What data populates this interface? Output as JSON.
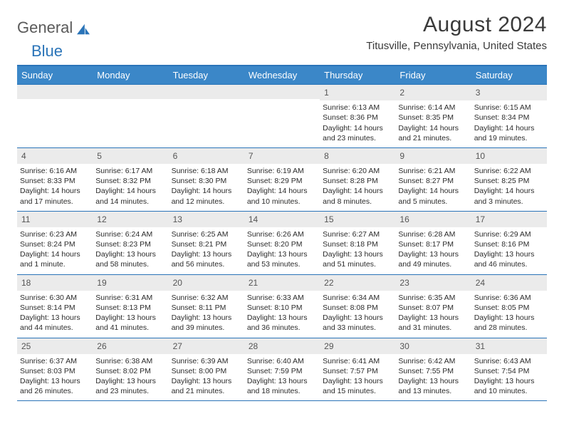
{
  "brand": {
    "part1": "General",
    "part2": "Blue"
  },
  "title": "August 2024",
  "location": "Titusville, Pennsylvania, United States",
  "colors": {
    "header_bg": "#3b87c8",
    "header_border": "#2a74b8",
    "daynum_bg": "#ebebeb",
    "text": "#2b2b2b"
  },
  "weekdays": [
    "Sunday",
    "Monday",
    "Tuesday",
    "Wednesday",
    "Thursday",
    "Friday",
    "Saturday"
  ],
  "weeks": [
    [
      {
        "n": "",
        "lines": []
      },
      {
        "n": "",
        "lines": []
      },
      {
        "n": "",
        "lines": []
      },
      {
        "n": "",
        "lines": []
      },
      {
        "n": "1",
        "lines": [
          "Sunrise: 6:13 AM",
          "Sunset: 8:36 PM",
          "Daylight: 14 hours",
          "and 23 minutes."
        ]
      },
      {
        "n": "2",
        "lines": [
          "Sunrise: 6:14 AM",
          "Sunset: 8:35 PM",
          "Daylight: 14 hours",
          "and 21 minutes."
        ]
      },
      {
        "n": "3",
        "lines": [
          "Sunrise: 6:15 AM",
          "Sunset: 8:34 PM",
          "Daylight: 14 hours",
          "and 19 minutes."
        ]
      }
    ],
    [
      {
        "n": "4",
        "lines": [
          "Sunrise: 6:16 AM",
          "Sunset: 8:33 PM",
          "Daylight: 14 hours",
          "and 17 minutes."
        ]
      },
      {
        "n": "5",
        "lines": [
          "Sunrise: 6:17 AM",
          "Sunset: 8:32 PM",
          "Daylight: 14 hours",
          "and 14 minutes."
        ]
      },
      {
        "n": "6",
        "lines": [
          "Sunrise: 6:18 AM",
          "Sunset: 8:30 PM",
          "Daylight: 14 hours",
          "and 12 minutes."
        ]
      },
      {
        "n": "7",
        "lines": [
          "Sunrise: 6:19 AM",
          "Sunset: 8:29 PM",
          "Daylight: 14 hours",
          "and 10 minutes."
        ]
      },
      {
        "n": "8",
        "lines": [
          "Sunrise: 6:20 AM",
          "Sunset: 8:28 PM",
          "Daylight: 14 hours",
          "and 8 minutes."
        ]
      },
      {
        "n": "9",
        "lines": [
          "Sunrise: 6:21 AM",
          "Sunset: 8:27 PM",
          "Daylight: 14 hours",
          "and 5 minutes."
        ]
      },
      {
        "n": "10",
        "lines": [
          "Sunrise: 6:22 AM",
          "Sunset: 8:25 PM",
          "Daylight: 14 hours",
          "and 3 minutes."
        ]
      }
    ],
    [
      {
        "n": "11",
        "lines": [
          "Sunrise: 6:23 AM",
          "Sunset: 8:24 PM",
          "Daylight: 14 hours",
          "and 1 minute."
        ]
      },
      {
        "n": "12",
        "lines": [
          "Sunrise: 6:24 AM",
          "Sunset: 8:23 PM",
          "Daylight: 13 hours",
          "and 58 minutes."
        ]
      },
      {
        "n": "13",
        "lines": [
          "Sunrise: 6:25 AM",
          "Sunset: 8:21 PM",
          "Daylight: 13 hours",
          "and 56 minutes."
        ]
      },
      {
        "n": "14",
        "lines": [
          "Sunrise: 6:26 AM",
          "Sunset: 8:20 PM",
          "Daylight: 13 hours",
          "and 53 minutes."
        ]
      },
      {
        "n": "15",
        "lines": [
          "Sunrise: 6:27 AM",
          "Sunset: 8:18 PM",
          "Daylight: 13 hours",
          "and 51 minutes."
        ]
      },
      {
        "n": "16",
        "lines": [
          "Sunrise: 6:28 AM",
          "Sunset: 8:17 PM",
          "Daylight: 13 hours",
          "and 49 minutes."
        ]
      },
      {
        "n": "17",
        "lines": [
          "Sunrise: 6:29 AM",
          "Sunset: 8:16 PM",
          "Daylight: 13 hours",
          "and 46 minutes."
        ]
      }
    ],
    [
      {
        "n": "18",
        "lines": [
          "Sunrise: 6:30 AM",
          "Sunset: 8:14 PM",
          "Daylight: 13 hours",
          "and 44 minutes."
        ]
      },
      {
        "n": "19",
        "lines": [
          "Sunrise: 6:31 AM",
          "Sunset: 8:13 PM",
          "Daylight: 13 hours",
          "and 41 minutes."
        ]
      },
      {
        "n": "20",
        "lines": [
          "Sunrise: 6:32 AM",
          "Sunset: 8:11 PM",
          "Daylight: 13 hours",
          "and 39 minutes."
        ]
      },
      {
        "n": "21",
        "lines": [
          "Sunrise: 6:33 AM",
          "Sunset: 8:10 PM",
          "Daylight: 13 hours",
          "and 36 minutes."
        ]
      },
      {
        "n": "22",
        "lines": [
          "Sunrise: 6:34 AM",
          "Sunset: 8:08 PM",
          "Daylight: 13 hours",
          "and 33 minutes."
        ]
      },
      {
        "n": "23",
        "lines": [
          "Sunrise: 6:35 AM",
          "Sunset: 8:07 PM",
          "Daylight: 13 hours",
          "and 31 minutes."
        ]
      },
      {
        "n": "24",
        "lines": [
          "Sunrise: 6:36 AM",
          "Sunset: 8:05 PM",
          "Daylight: 13 hours",
          "and 28 minutes."
        ]
      }
    ],
    [
      {
        "n": "25",
        "lines": [
          "Sunrise: 6:37 AM",
          "Sunset: 8:03 PM",
          "Daylight: 13 hours",
          "and 26 minutes."
        ]
      },
      {
        "n": "26",
        "lines": [
          "Sunrise: 6:38 AM",
          "Sunset: 8:02 PM",
          "Daylight: 13 hours",
          "and 23 minutes."
        ]
      },
      {
        "n": "27",
        "lines": [
          "Sunrise: 6:39 AM",
          "Sunset: 8:00 PM",
          "Daylight: 13 hours",
          "and 21 minutes."
        ]
      },
      {
        "n": "28",
        "lines": [
          "Sunrise: 6:40 AM",
          "Sunset: 7:59 PM",
          "Daylight: 13 hours",
          "and 18 minutes."
        ]
      },
      {
        "n": "29",
        "lines": [
          "Sunrise: 6:41 AM",
          "Sunset: 7:57 PM",
          "Daylight: 13 hours",
          "and 15 minutes."
        ]
      },
      {
        "n": "30",
        "lines": [
          "Sunrise: 6:42 AM",
          "Sunset: 7:55 PM",
          "Daylight: 13 hours",
          "and 13 minutes."
        ]
      },
      {
        "n": "31",
        "lines": [
          "Sunrise: 6:43 AM",
          "Sunset: 7:54 PM",
          "Daylight: 13 hours",
          "and 10 minutes."
        ]
      }
    ]
  ]
}
